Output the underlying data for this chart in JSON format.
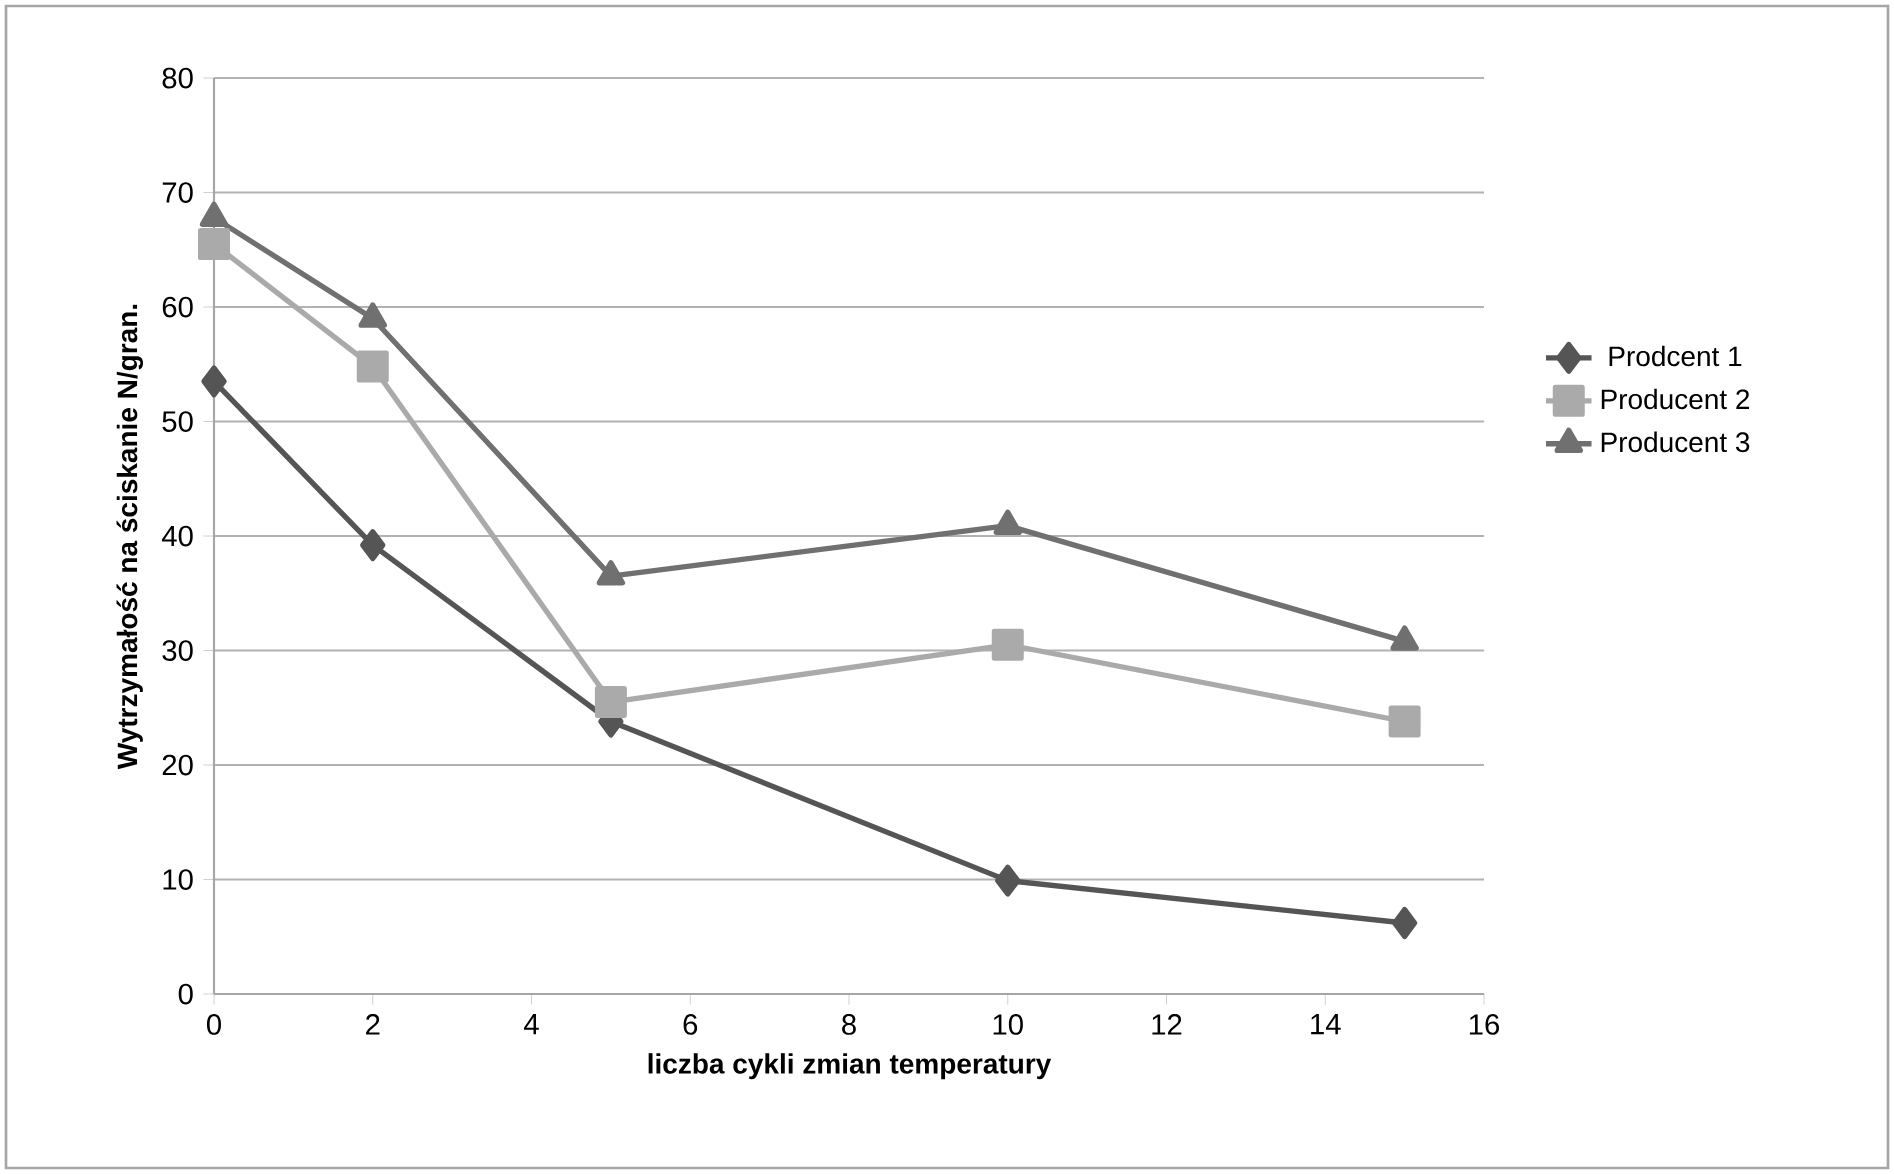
{
  "chart_data": {
    "type": "line",
    "x": [
      0,
      2,
      5,
      10,
      15
    ],
    "xlabel": "liczba cykli zmian temperatury",
    "ylabel": "Wytrzymałość na ściskanie N/gran.",
    "xlim": [
      0,
      16
    ],
    "xticks": [
      0,
      2,
      4,
      6,
      8,
      10,
      12,
      14,
      16
    ],
    "ylim": [
      0,
      80
    ],
    "yticks": [
      0,
      10,
      20,
      30,
      40,
      50,
      60,
      70,
      80
    ],
    "grid": "y",
    "legend": "right",
    "series": [
      {
        "name": "Prodcent 1",
        "color": "#555555",
        "marker": "diamond",
        "values": [
          53.5,
          39.2,
          23.8,
          9.9,
          6.2
        ]
      },
      {
        "name": "Producent 2",
        "color": "#aaaaaa",
        "marker": "square",
        "values": [
          65.5,
          54.8,
          25.5,
          30.5,
          23.8
        ]
      },
      {
        "name": "Producent 3",
        "color": "#707070",
        "marker": "triangle",
        "values": [
          67.8,
          59.0,
          36.5,
          40.9,
          30.8
        ]
      }
    ]
  }
}
